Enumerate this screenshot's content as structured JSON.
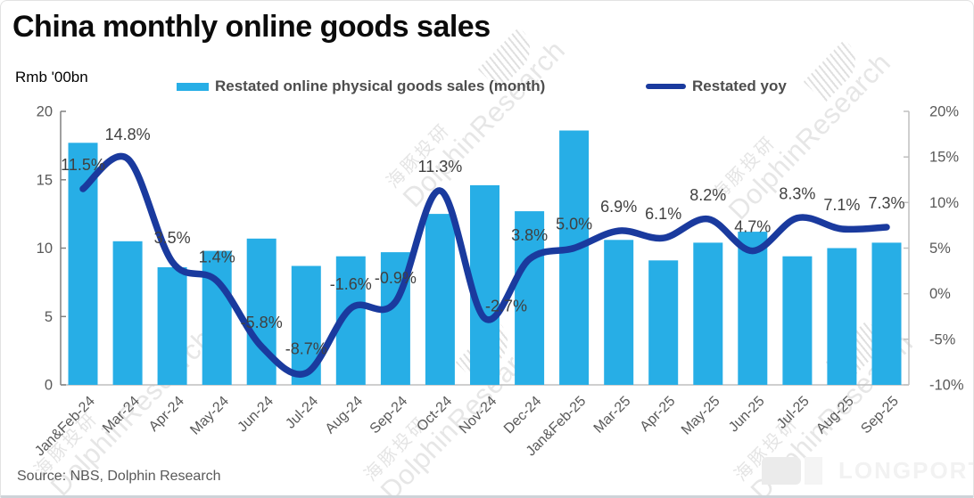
{
  "title": "China monthly online goods sales",
  "units_label": "Rmb '00bn",
  "legend": {
    "bars": "Restated online physical goods sales  (month)",
    "line": "Restated yoy"
  },
  "source": "Source: NBS, Dolphin Research",
  "watermark": {
    "cn": "海豚投研",
    "en": "DolphinResearch"
  },
  "brand": "LONGPORT",
  "colors": {
    "bar": "#27AEE6",
    "line": "#1A3A9E",
    "axis_text": "#595959",
    "label_text": "#404040",
    "left_axis_line": "#808080",
    "right_axis_line": "#BFBFBF"
  },
  "chart_data": {
    "type": "bar",
    "title": "China monthly online goods sales",
    "categories": [
      "Jan&Feb-24",
      "Mar-24",
      "Apr-24",
      "May-24",
      "Jun-24",
      "Jul-24",
      "Aug-24",
      "Sep-24",
      "Oct-24",
      "Nov-24",
      "Dec-24",
      "Jan&Feb-25",
      "Mar-25",
      "Apr-25",
      "May-25",
      "Jun-25",
      "Jul-25",
      "Aug-25",
      "Sep-25"
    ],
    "series": [
      {
        "name": "Restated online physical goods sales (month)",
        "type": "bar",
        "axis": "left",
        "unit": "Rmb '00bn",
        "values": [
          17.7,
          10.5,
          8.6,
          9.8,
          10.7,
          8.7,
          9.4,
          9.7,
          12.5,
          14.6,
          12.7,
          18.6,
          10.6,
          9.1,
          10.4,
          11.2,
          9.4,
          10.0,
          10.4
        ]
      },
      {
        "name": "Restated yoy",
        "type": "line",
        "axis": "right",
        "unit": "%",
        "values_pct": [
          11.5,
          14.8,
          3.5,
          1.4,
          -5.8,
          -8.7,
          -1.6,
          -0.9,
          11.3,
          -2.7,
          3.8,
          5.0,
          6.9,
          6.1,
          8.2,
          4.7,
          8.3,
          7.1,
          7.3
        ],
        "labels": [
          "11.5%",
          "14.8%",
          "3.5%",
          "1.4%",
          "-5.8%",
          "-8.7%",
          "-1.6%",
          "-0.9%",
          "11.3%",
          "-2.7%",
          "3.8%",
          "5.0%",
          "6.9%",
          "6.1%",
          "8.2%",
          "4.7%",
          "8.3%",
          "7.1%",
          "7.3%"
        ]
      }
    ],
    "left_axis": {
      "title": "Rmb '00bn",
      "ticks": [
        0,
        5,
        10,
        15,
        20
      ],
      "range": [
        0,
        20
      ]
    },
    "right_axis": {
      "ticks_pct": [
        20,
        15,
        10,
        5,
        0,
        -5,
        -10
      ],
      "range_pct": [
        -10,
        20
      ]
    },
    "grid": false,
    "legend_position": "top",
    "xlabel": "",
    "ylabel_left": "Rmb '00bn",
    "ylabel_right": "%"
  }
}
